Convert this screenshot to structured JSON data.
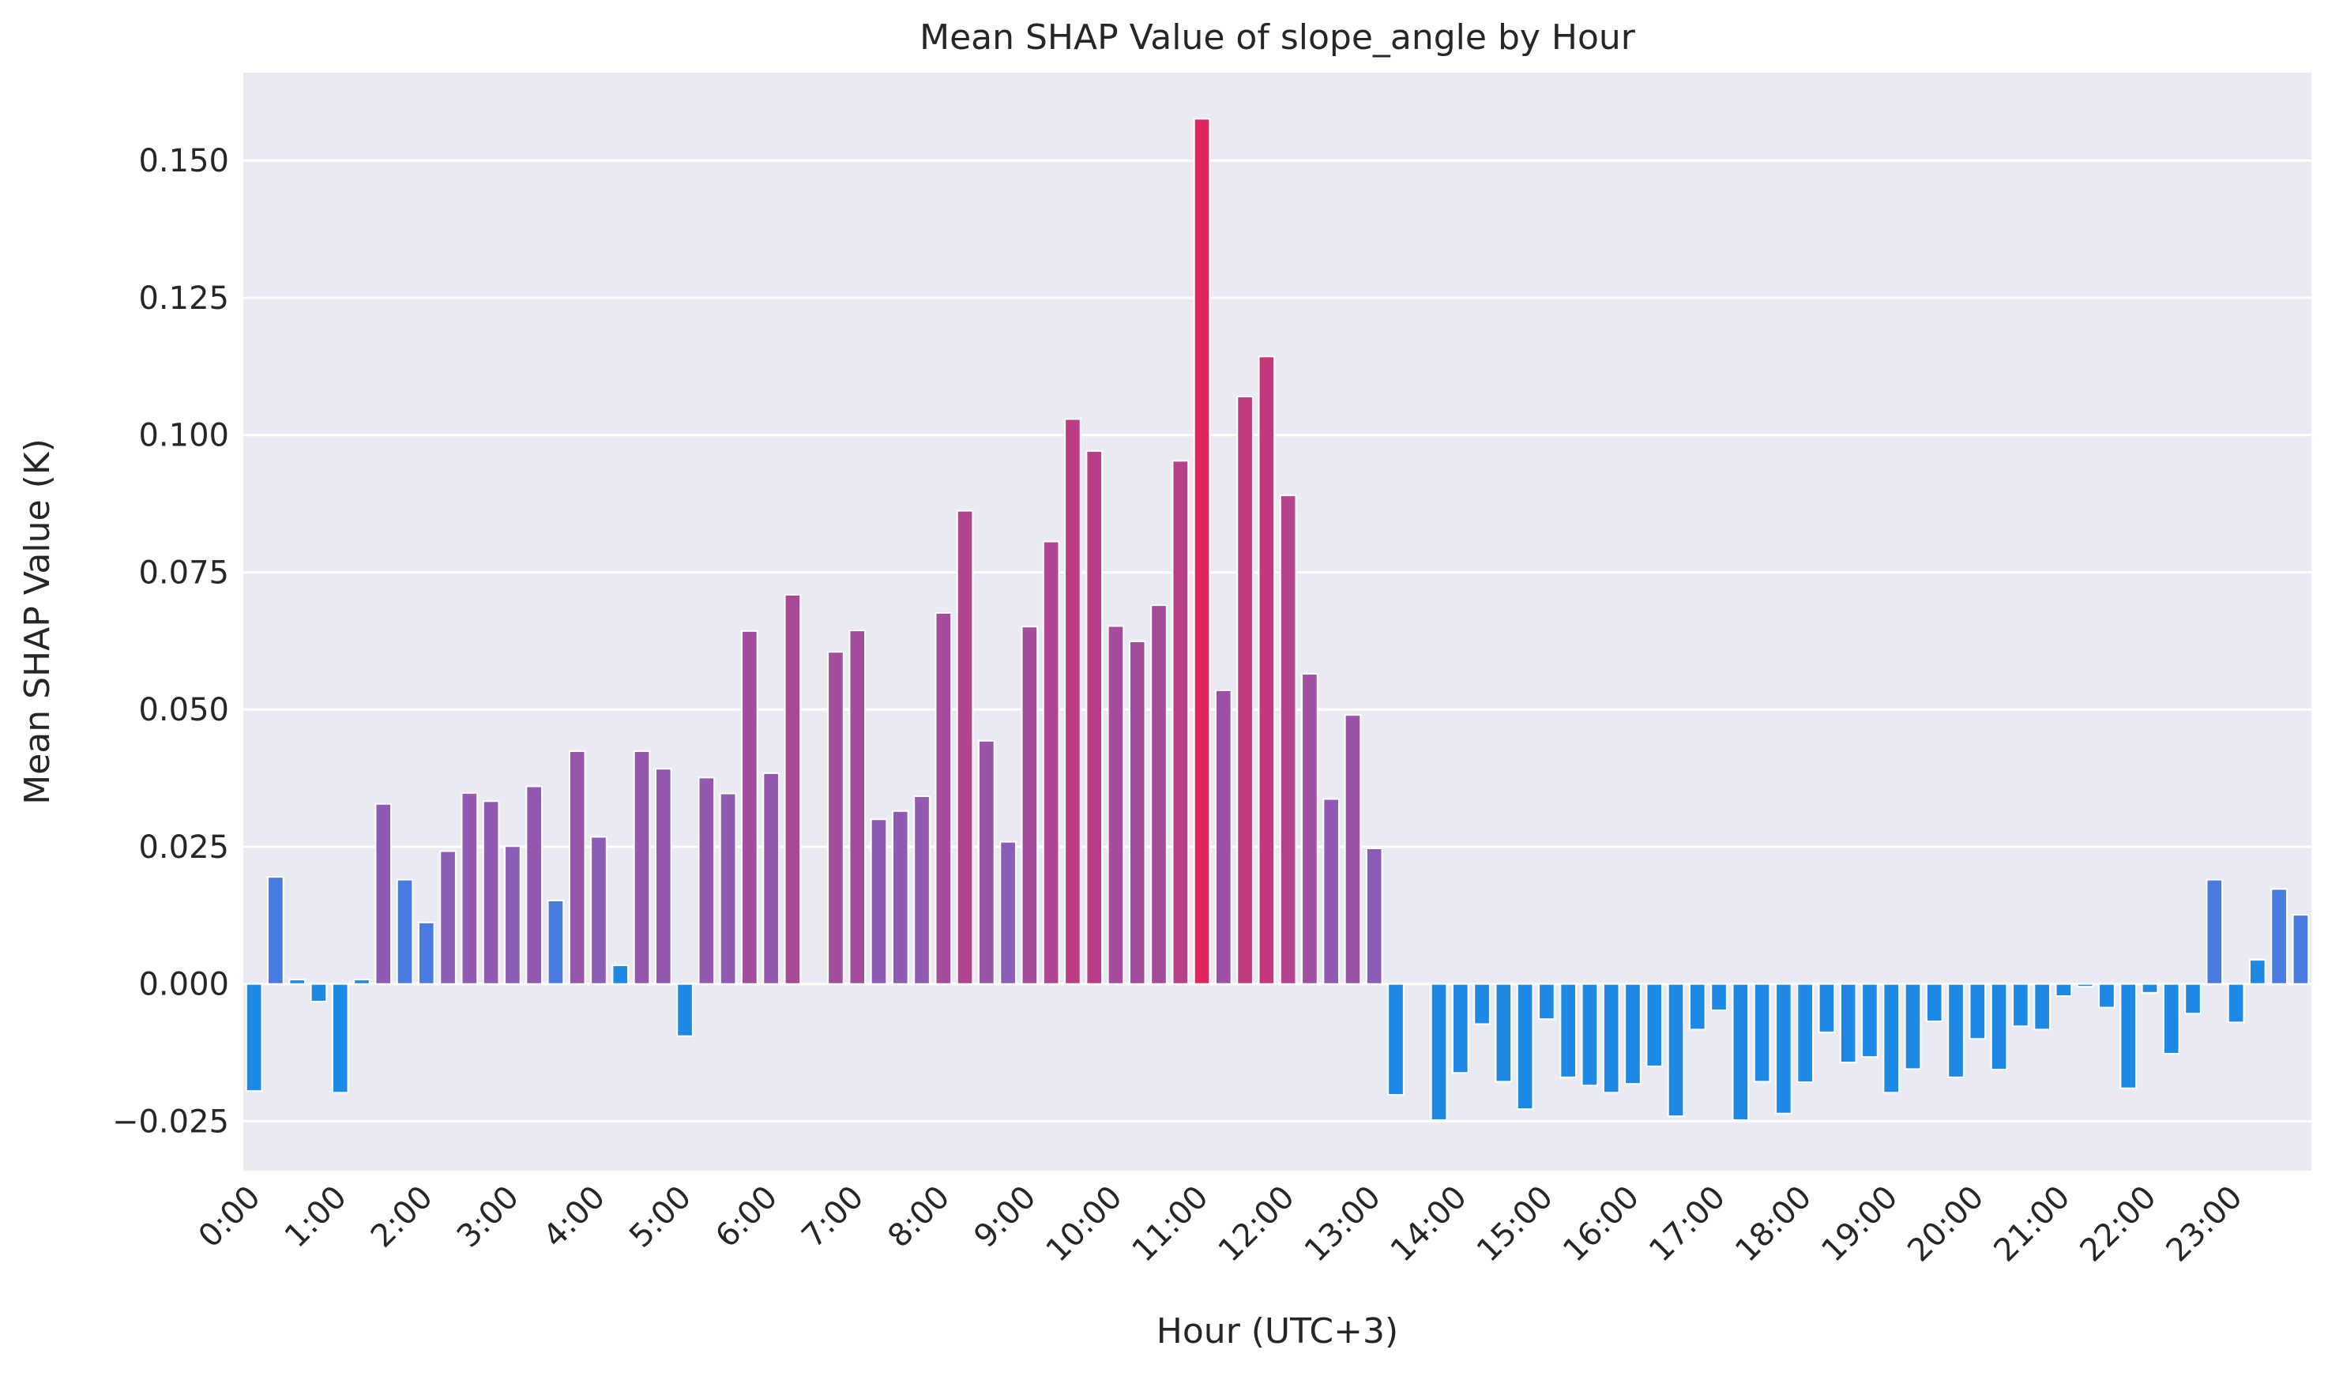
{
  "chart_data": {
    "type": "bar",
    "title": "Mean SHAP Value of slope_angle by Hour",
    "xlabel": "Hour (UTC+3)",
    "ylabel": "Mean SHAP Value (K)",
    "ylim": [
      -0.034,
      0.166
    ],
    "yticks": [
      -0.025,
      0.0,
      0.025,
      0.05,
      0.075,
      0.1,
      0.125,
      0.15
    ],
    "ytick_labels": [
      "−0.025",
      "0.000",
      "0.025",
      "0.050",
      "0.075",
      "0.100",
      "0.125",
      "0.150"
    ],
    "xtick_labels": [
      "0:00",
      "1:00",
      "2:00",
      "3:00",
      "4:00",
      "5:00",
      "6:00",
      "7:00",
      "8:00",
      "9:00",
      "10:00",
      "11:00",
      "12:00",
      "13:00",
      "14:00",
      "15:00",
      "16:00",
      "17:00",
      "18:00",
      "19:00",
      "20:00",
      "21:00",
      "22:00",
      "23:00"
    ],
    "bars_per_hour": 4,
    "grid": true,
    "colors": {
      "background": "#eaeaf2",
      "grid": "#ffffff",
      "negative": "#1e88e5",
      "low": "#7b68c8",
      "high": "#e0245e"
    },
    "values": [
      -0.0195,
      0.0195,
      0.0008,
      -0.0032,
      -0.0198,
      0.0008,
      0.0328,
      0.019,
      0.0112,
      0.0242,
      0.0348,
      0.0333,
      0.0251,
      0.036,
      0.0152,
      0.0424,
      0.0268,
      0.0034,
      0.0424,
      0.0392,
      -0.0095,
      0.0376,
      0.0347,
      0.0643,
      0.0384,
      0.0709,
      0.0,
      0.0605,
      0.0644,
      0.03,
      0.0315,
      0.0342,
      0.0676,
      0.0862,
      0.0443,
      0.0259,
      0.0651,
      0.0806,
      0.1029,
      0.0971,
      0.0652,
      0.0624,
      0.069,
      0.0953,
      0.1576,
      0.0535,
      0.107,
      0.1143,
      0.089,
      0.0565,
      0.0337,
      0.049,
      0.0247,
      -0.0202,
      0.0,
      -0.0248,
      -0.0162,
      -0.0073,
      -0.0178,
      -0.0228,
      -0.0064,
      -0.017,
      -0.0185,
      -0.0198,
      -0.0182,
      -0.015,
      -0.0241,
      -0.0083,
      -0.0048,
      -0.0248,
      -0.0178,
      -0.0236,
      -0.0179,
      -0.0088,
      -0.0143,
      -0.0133,
      -0.0198,
      -0.0155,
      -0.0068,
      -0.017,
      -0.01,
      -0.0156,
      -0.0077,
      -0.0083,
      -0.0022,
      -0.0005,
      -0.0043,
      -0.019,
      -0.0016,
      -0.0127,
      -0.0054,
      0.019,
      -0.007,
      0.0044,
      0.0173,
      0.0126
    ]
  }
}
